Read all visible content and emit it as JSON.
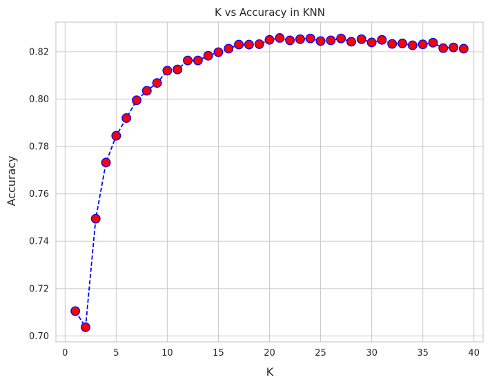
{
  "chart_data": {
    "type": "line",
    "title": "K vs Accuracy in KNN",
    "xlabel": "K",
    "ylabel": "Accuracy",
    "xlim": [
      -0.9,
      40.9
    ],
    "ylim": [
      0.6975,
      0.8325
    ],
    "xticks": [
      0,
      5,
      10,
      15,
      20,
      25,
      30,
      35,
      40
    ],
    "yticks": [
      0.7,
      0.72,
      0.74,
      0.76,
      0.78,
      0.8,
      0.82
    ],
    "grid": true,
    "line_color": "#0000ff",
    "line_style": "dashed",
    "marker_face_color": "#ff0000",
    "marker_edge_color": "#0000ff",
    "series": [
      {
        "x": [
          1,
          2,
          3,
          4,
          5,
          6,
          7,
          8,
          9,
          10,
          11,
          12,
          13,
          14,
          15,
          16,
          17,
          18,
          19,
          20,
          21,
          22,
          23,
          24,
          25,
          26,
          27,
          28,
          29,
          30,
          31,
          32,
          33,
          34,
          35,
          36,
          37,
          38,
          39
        ],
        "values": [
          0.7105,
          0.7037,
          0.7495,
          0.7732,
          0.7845,
          0.792,
          0.7995,
          0.8035,
          0.8068,
          0.812,
          0.8125,
          0.8163,
          0.8163,
          0.8183,
          0.8198,
          0.8213,
          0.823,
          0.823,
          0.8232,
          0.825,
          0.8258,
          0.8248,
          0.8253,
          0.8256,
          0.8245,
          0.8248,
          0.8256,
          0.8242,
          0.8253,
          0.8239,
          0.825,
          0.8233,
          0.8235,
          0.8227,
          0.8231,
          0.8238,
          0.8215,
          0.8218,
          0.8213
        ]
      }
    ]
  }
}
